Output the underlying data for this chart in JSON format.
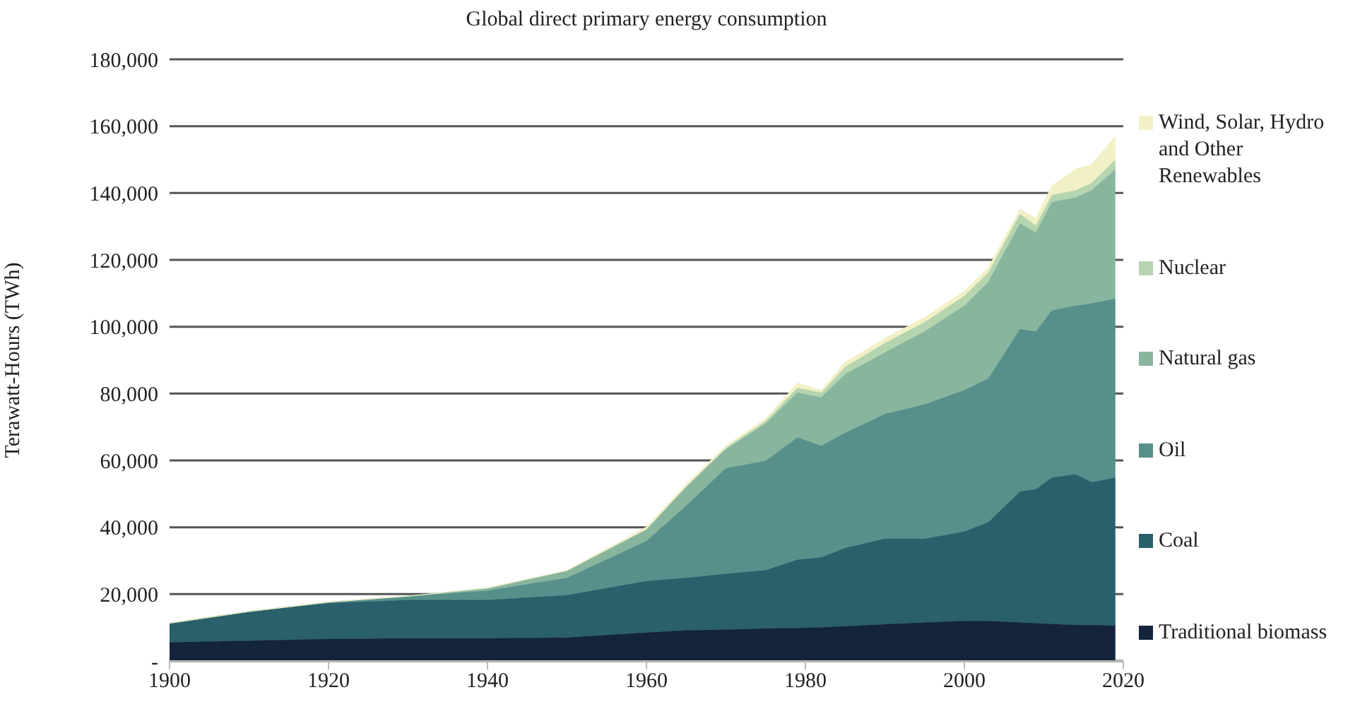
{
  "chart_data": {
    "type": "area",
    "stacked": true,
    "title": "Global direct primary energy consumption",
    "ylabel": "Terawatt-Hours  (TWh)",
    "x": [
      1900,
      1910,
      1920,
      1930,
      1940,
      1950,
      1960,
      1965,
      1970,
      1975,
      1979,
      1982,
      1985,
      1990,
      1995,
      2000,
      2003,
      2007,
      2009,
      2011,
      2014,
      2016,
      2019
    ],
    "series": [
      {
        "name": "Traditional biomass",
        "color": "#14243c",
        "values": [
          5600,
          6100,
          6600,
          6800,
          6800,
          7000,
          8500,
          9200,
          9400,
          9700,
          9900,
          10100,
          10400,
          11000,
          11500,
          12000,
          12000,
          11500,
          11300,
          11100,
          10800,
          10700,
          10600
        ]
      },
      {
        "name": "Coal",
        "color": "#2a5f6c",
        "values": [
          5700,
          8700,
          10700,
          11500,
          11500,
          12700,
          15400,
          15700,
          16700,
          17500,
          20400,
          20900,
          23400,
          25600,
          25100,
          26700,
          29500,
          39200,
          40100,
          43800,
          45100,
          42800,
          44300
        ]
      },
      {
        "name": "Oil",
        "color": "#57908a",
        "values": [
          0,
          0,
          300,
          1000,
          2800,
          5200,
          12000,
          21600,
          31600,
          32700,
          36600,
          33400,
          34500,
          37300,
          40200,
          42300,
          43000,
          48600,
          47200,
          50000,
          50400,
          53500,
          53500
        ]
      },
      {
        "name": "Natural gas",
        "color": "#88b59e",
        "values": [
          0,
          0,
          0,
          100,
          700,
          2100,
          3500,
          5600,
          5700,
          11200,
          13400,
          14500,
          17600,
          18400,
          21800,
          25300,
          28900,
          31700,
          29600,
          32400,
          32400,
          33800,
          38700
        ]
      },
      {
        "name": "Nuclear",
        "color": "#b5d4b0",
        "values": [
          0,
          0,
          0,
          0,
          0,
          0,
          0,
          100,
          400,
          700,
          1400,
          1400,
          2100,
          2800,
          2800,
          2900,
          2800,
          2800,
          2100,
          2100,
          2100,
          2200,
          2900
        ]
      },
      {
        "name": "Wind, Solar, Hydro and Other Renewables",
        "color": "#f2f0c6",
        "values": [
          0,
          0,
          0,
          0,
          0,
          100,
          700,
          700,
          600,
          700,
          1400,
          700,
          1400,
          1400,
          1400,
          1400,
          1400,
          1400,
          2100,
          2800,
          6300,
          5500,
          7000
        ]
      }
    ],
    "xlim": [
      1900,
      2020
    ],
    "xticks": [
      1900,
      1920,
      1940,
      1960,
      1980,
      2000,
      2020
    ],
    "ylim": [
      0,
      180000
    ],
    "yticks": [
      {
        "value": 0,
        "label": "-"
      },
      {
        "value": 20000,
        "label": "20,000"
      },
      {
        "value": 40000,
        "label": "40,000"
      },
      {
        "value": 60000,
        "label": "60,000"
      },
      {
        "value": 80000,
        "label": "80,000"
      },
      {
        "value": 100000,
        "label": "100,000"
      },
      {
        "value": 120000,
        "label": "120,000"
      },
      {
        "value": 140000,
        "label": "140,000"
      },
      {
        "value": 160000,
        "label": "160,000"
      },
      {
        "value": 180000,
        "label": "180,000"
      }
    ],
    "grid": "y",
    "legend": "right"
  }
}
